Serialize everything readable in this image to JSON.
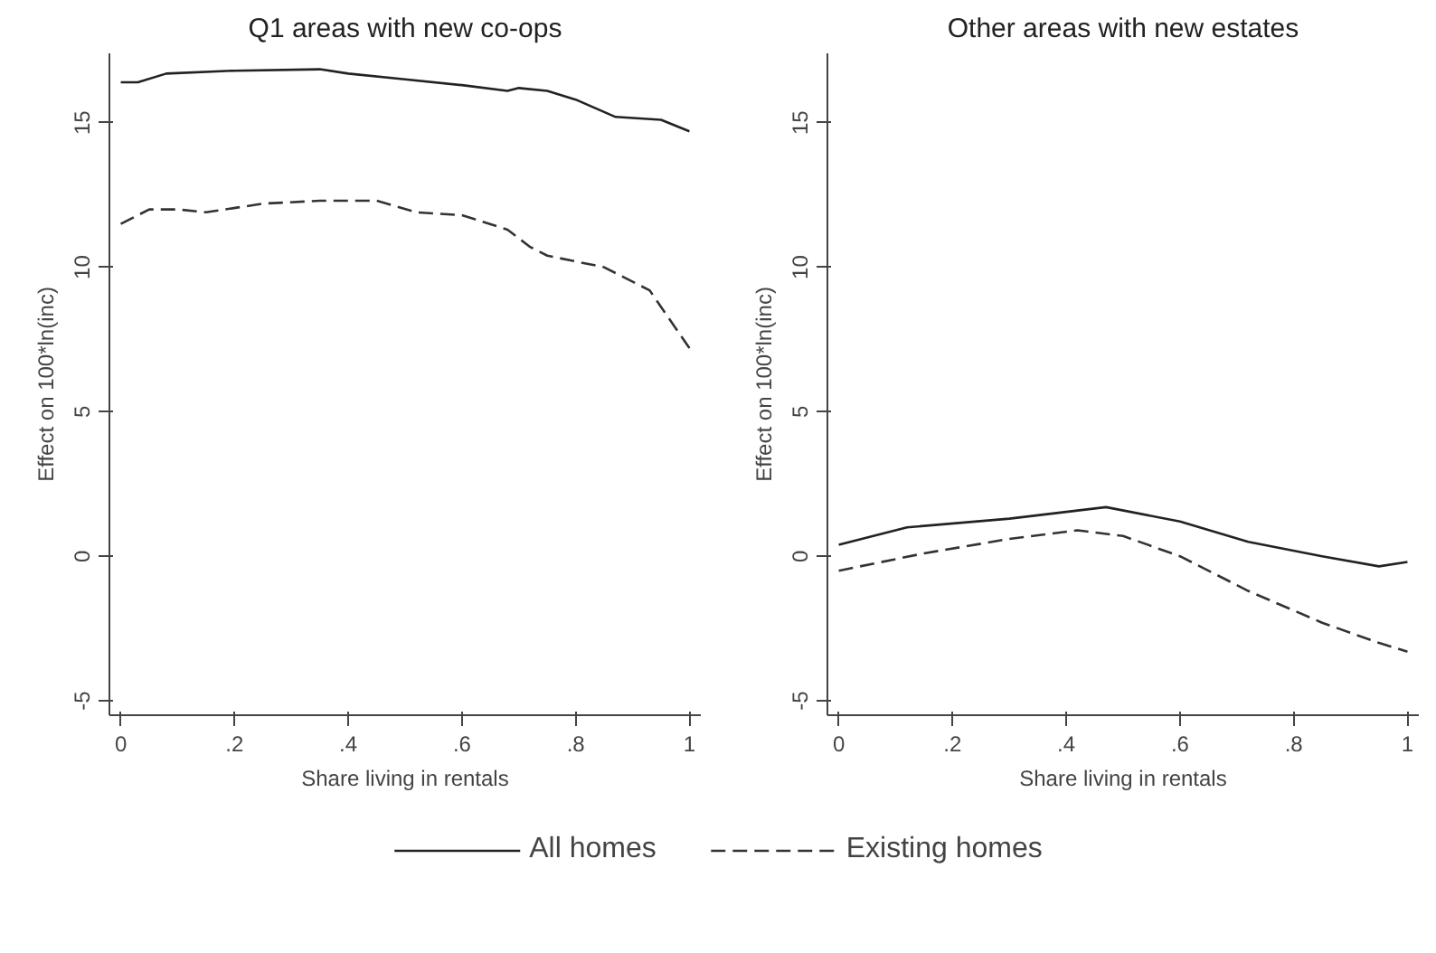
{
  "chart_data": [
    {
      "type": "line",
      "title": "Q1 areas with new co-ops",
      "xlabel": "Share living in rentals",
      "ylabel": "Effect on 100*ln(inc)",
      "xlim": [
        -0.02,
        1.02
      ],
      "ylim": [
        -5.5,
        17.4
      ],
      "xticks": [
        0,
        {
          "value": 0.2,
          "label": ".2"
        },
        {
          "value": 0.4,
          "label": ".4"
        },
        {
          "value": 0.6,
          "label": ".6"
        },
        {
          "value": 0.8,
          "label": ".8"
        },
        1
      ],
      "yticks": [
        -5,
        0,
        5,
        10,
        15
      ],
      "grid": false,
      "legend": "bottom",
      "series": [
        {
          "name": "All homes",
          "color": "#222222",
          "line_style": "solid",
          "x": [
            0,
            0.03,
            0.08,
            0.2,
            0.35,
            0.4,
            0.5,
            0.6,
            0.68,
            0.7,
            0.75,
            0.8,
            0.87,
            0.95,
            1.0
          ],
          "values": [
            16.4,
            16.4,
            16.7,
            16.8,
            16.85,
            16.7,
            16.5,
            16.3,
            16.1,
            16.2,
            16.1,
            15.8,
            15.2,
            15.1,
            14.7
          ]
        },
        {
          "name": "Existing homes",
          "color": "#333333",
          "line_style": "dashed",
          "x": [
            0,
            0.05,
            0.1,
            0.15,
            0.25,
            0.35,
            0.45,
            0.52,
            0.6,
            0.68,
            0.72,
            0.75,
            0.85,
            0.93,
            1.0
          ],
          "values": [
            11.5,
            12,
            12,
            11.9,
            12.2,
            12.3,
            12.3,
            11.9,
            11.8,
            11.3,
            10.7,
            10.4,
            10.0,
            9.2,
            7.2
          ]
        }
      ]
    },
    {
      "type": "line",
      "title": "Other areas with new estates",
      "xlabel": "Share living in rentals",
      "ylabel": "Effect on 100*ln(inc)",
      "xlim": [
        -0.02,
        1.02
      ],
      "ylim": [
        -5.5,
        17.4
      ],
      "xticks": [
        0,
        {
          "value": 0.2,
          "label": ".2"
        },
        {
          "value": 0.4,
          "label": ".4"
        },
        {
          "value": 0.6,
          "label": ".6"
        },
        {
          "value": 0.8,
          "label": ".8"
        },
        1
      ],
      "yticks": [
        -5,
        0,
        5,
        10,
        15
      ],
      "grid": false,
      "series": [
        {
          "color": "#222222",
          "line_style": "solid",
          "x": [
            0,
            0.12,
            0.3,
            0.47,
            0.6,
            0.72,
            0.85,
            0.95,
            1.0
          ],
          "values": [
            0.4,
            1.0,
            1.3,
            1.7,
            1.2,
            0.5,
            0,
            -0.35,
            -0.2
          ]
        },
        {
          "color": "#333333",
          "line_style": "dashed",
          "x": [
            0,
            0.15,
            0.3,
            0.42,
            0.5,
            0.6,
            0.72,
            0.85,
            0.95,
            1.0
          ],
          "values": [
            -0.5,
            0.1,
            0.6,
            0.9,
            0.7,
            0,
            -1.2,
            -2.3,
            -3.0,
            -3.3
          ]
        }
      ]
    }
  ]
}
